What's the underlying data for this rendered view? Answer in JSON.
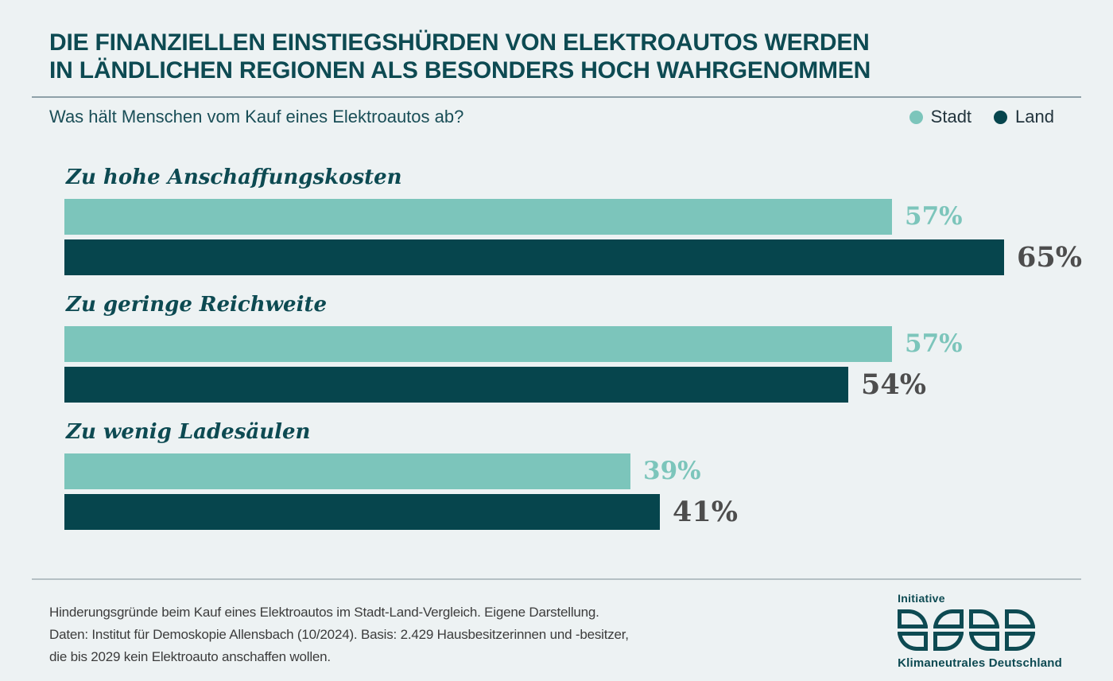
{
  "header": {
    "title_line1": "DIE FINANZIELLEN EINSTIEGSHÜRDEN VON ELEKTROAUTOS WERDEN",
    "title_line2": "IN LÄNDLICHEN REGIONEN ALS BESONDERS HOCH WAHRGENOMMEN"
  },
  "subtitle": "Was hält Menschen vom Kauf eines Elektroautos ab?",
  "legend": [
    {
      "label": "Stadt",
      "color": "#7CC5BB"
    },
    {
      "label": "Land",
      "color": "#06454D"
    }
  ],
  "chart_data": {
    "type": "bar",
    "orientation": "horizontal",
    "title": "Was hält Menschen vom Kauf eines Elektroautos ab?",
    "categories": [
      "Zu hohe Anschaffungskosten",
      "Zu geringe Reichweite",
      "Zu wenig Ladesäulen"
    ],
    "series": [
      {
        "name": "Stadt",
        "color": "#7CC5BB",
        "values": [
          57,
          57,
          39
        ]
      },
      {
        "name": "Land",
        "color": "#06454D",
        "values": [
          65,
          54,
          41
        ]
      }
    ],
    "unit": "%",
    "xlim": [
      0,
      68
    ],
    "grid": false,
    "legend_position": "top-right",
    "value_label_colors": {
      "Stadt": "#7CC5BB",
      "Land": "#4D4D4D"
    }
  },
  "footer": {
    "lines": [
      "Hinderungsgründe beim Kauf eines Elektroautos im Stadt-Land-Vergleich. Eigene Darstellung.",
      "Daten: Institut für Demoskopie Allensbach (10/2024). Basis: 2.429 Hausbesitzerinnen und -besitzer,",
      "die bis 2029 kein Elektroauto anschaffen wollen."
    ]
  },
  "brand": {
    "top_label": "Initiative",
    "bottom_label": "Klimaneutrales Deutschland"
  },
  "colors": {
    "background": "#EDF2F3",
    "title": "#0D4A52",
    "rule_top": "#8FA1A8",
    "rule_bottom": "#B5C0C4",
    "footer_text": "#3C3C3C"
  }
}
